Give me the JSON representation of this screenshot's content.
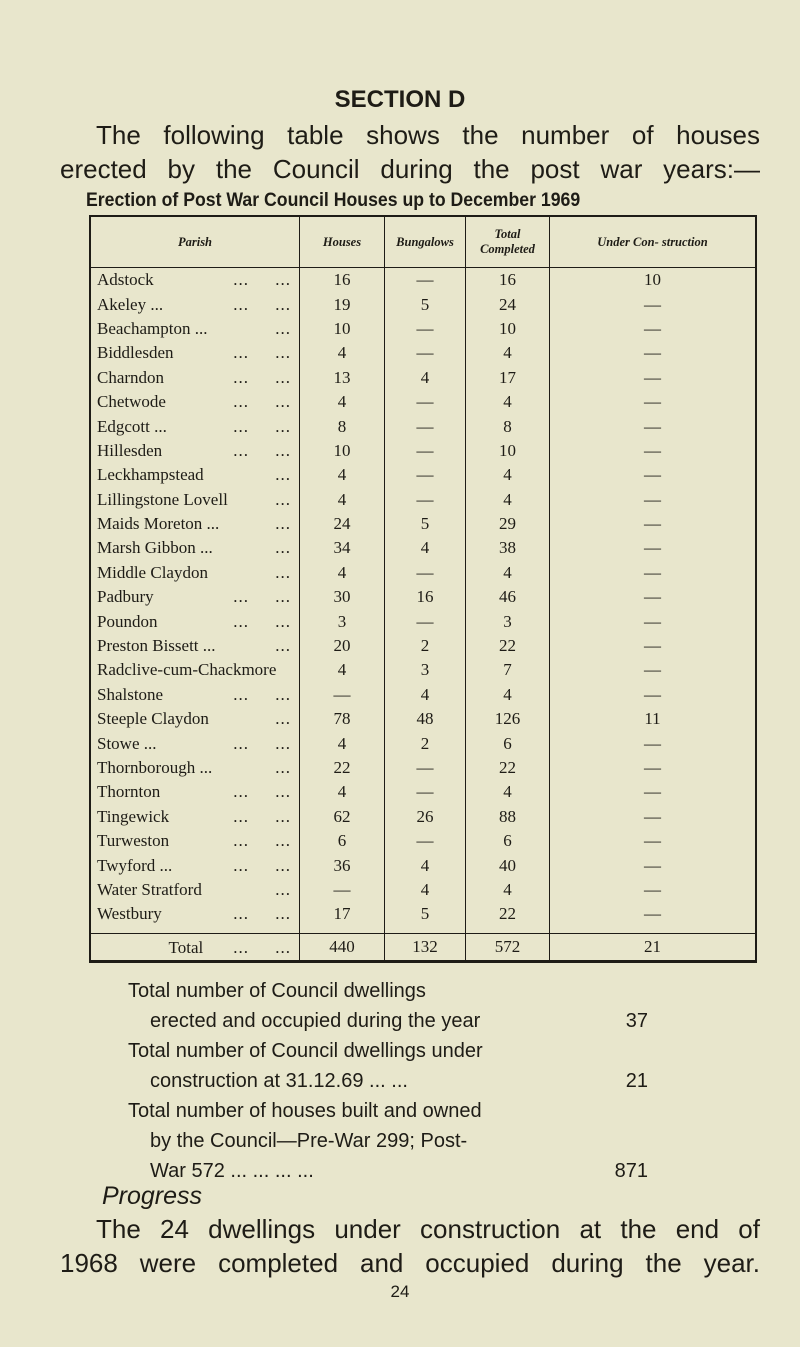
{
  "section_title": "SECTION D",
  "intro": [
    "The following table shows the number of houses",
    "erected by the Council during the post war years:—"
  ],
  "table_caption": "Erection of Post War Council Houses up to December 1969",
  "table": {
    "headers": [
      "Parish",
      "Houses",
      "Bungalows",
      "Total Completed",
      "Under Con- struction"
    ],
    "rows": [
      {
        "parish": "Adstock",
        "dots": "...     ...",
        "houses": "16",
        "bungalows": "—",
        "total": "16",
        "under": "10"
      },
      {
        "parish": "Akeley ...",
        "dots": "...     ...",
        "houses": "19",
        "bungalows": "5",
        "total": "24",
        "under": "—"
      },
      {
        "parish": "Beachampton ...",
        "dots": "...",
        "houses": "10",
        "bungalows": "—",
        "total": "10",
        "under": "—"
      },
      {
        "parish": "Biddlesden",
        "dots": "...     ...",
        "houses": "4",
        "bungalows": "—",
        "total": "4",
        "under": "—"
      },
      {
        "parish": "Charndon",
        "dots": "...     ...",
        "houses": "13",
        "bungalows": "4",
        "total": "17",
        "under": "—"
      },
      {
        "parish": "Chetwode",
        "dots": "...     ...",
        "houses": "4",
        "bungalows": "—",
        "total": "4",
        "under": "—"
      },
      {
        "parish": "Edgcott ...",
        "dots": "...     ...",
        "houses": "8",
        "bungalows": "—",
        "total": "8",
        "under": "—"
      },
      {
        "parish": "Hillesden",
        "dots": "...     ...",
        "houses": "10",
        "bungalows": "—",
        "total": "10",
        "under": "—"
      },
      {
        "parish": "Leckhampstead",
        "dots": "...",
        "houses": "4",
        "bungalows": "—",
        "total": "4",
        "under": "—"
      },
      {
        "parish": "Lillingstone Lovell",
        "dots": "...",
        "houses": "4",
        "bungalows": "—",
        "total": "4",
        "under": "—"
      },
      {
        "parish": "Maids Moreton ...",
        "dots": "...",
        "houses": "24",
        "bungalows": "5",
        "total": "29",
        "under": "—"
      },
      {
        "parish": "Marsh Gibbon ...",
        "dots": "...",
        "houses": "34",
        "bungalows": "4",
        "total": "38",
        "under": "—"
      },
      {
        "parish": "Middle Claydon",
        "dots": "...",
        "houses": "4",
        "bungalows": "—",
        "total": "4",
        "under": "—"
      },
      {
        "parish": "Padbury",
        "dots": "...     ...",
        "houses": "30",
        "bungalows": "16",
        "total": "46",
        "under": "—"
      },
      {
        "parish": "Poundon",
        "dots": "...     ...",
        "houses": "3",
        "bungalows": "—",
        "total": "3",
        "under": "—"
      },
      {
        "parish": "Preston Bissett ...",
        "dots": "...",
        "houses": "20",
        "bungalows": "2",
        "total": "22",
        "under": "—"
      },
      {
        "parish": "Radclive-cum-Chackmore",
        "dots": "",
        "houses": "4",
        "bungalows": "3",
        "total": "7",
        "under": "—"
      },
      {
        "parish": "Shalstone",
        "dots": "...     ...",
        "houses": "—",
        "bungalows": "4",
        "total": "4",
        "under": "—"
      },
      {
        "parish": "Steeple Claydon",
        "dots": "...",
        "houses": "78",
        "bungalows": "48",
        "total": "126",
        "under": "11"
      },
      {
        "parish": "Stowe ...",
        "dots": "...     ...",
        "houses": "4",
        "bungalows": "2",
        "total": "6",
        "under": "—"
      },
      {
        "parish": "Thornborough ...",
        "dots": "...",
        "houses": "22",
        "bungalows": "—",
        "total": "22",
        "under": "—"
      },
      {
        "parish": "Thornton",
        "dots": "...     ...",
        "houses": "4",
        "bungalows": "—",
        "total": "4",
        "under": "—"
      },
      {
        "parish": "Tingewick",
        "dots": "...     ...",
        "houses": "62",
        "bungalows": "26",
        "total": "88",
        "under": "—"
      },
      {
        "parish": "Turweston",
        "dots": "...     ...",
        "houses": "6",
        "bungalows": "—",
        "total": "6",
        "under": "—"
      },
      {
        "parish": "Twyford ...",
        "dots": "...     ...",
        "houses": "36",
        "bungalows": "4",
        "total": "40",
        "under": "—"
      },
      {
        "parish": "Water Stratford",
        "dots": "...",
        "houses": "—",
        "bungalows": "4",
        "total": "4",
        "under": "—"
      },
      {
        "parish": "Westbury",
        "dots": "...     ...",
        "houses": "17",
        "bungalows": "5",
        "total": "22",
        "under": "—"
      }
    ],
    "total": {
      "label": "Total",
      "dots": "...     ...",
      "houses": "440",
      "bungalows": "132",
      "total": "572",
      "under": "21"
    }
  },
  "summary": [
    {
      "lines": [
        "Total number of Council dwellings",
        "erected and occupied during the year"
      ],
      "value": "37"
    },
    {
      "lines": [
        "Total number of Council dwellings under",
        "construction at 31.12.69  ...  ..."
      ],
      "value": "21"
    },
    {
      "lines": [
        "Total number of houses built and owned",
        "by the Council—Pre-War 299; Post-",
        "War 572  ...  ...  ...  ..."
      ],
      "value": "871"
    }
  ],
  "progress_heading": "Progress",
  "progress_text": [
    "The 24 dwellings under construction at the end of",
    "1968 were completed and occupied during the year."
  ],
  "page_number": "24"
}
